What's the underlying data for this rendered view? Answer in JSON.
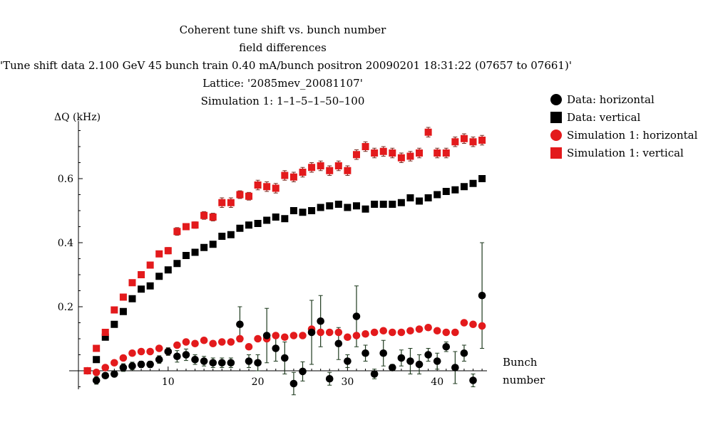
{
  "chart_data": {
    "type": "scatter",
    "title_lines": [
      "Coherent tune shift vs. bunch number",
      "field differences",
      "'Tune shift data 2.100 GeV  45 bunch train  0.40 mA/bunch positron 20090201 18:31:22 (07657 to 07661)'",
      "Lattice: '2085mev_20081107'",
      "Simulation 1: 1–1–5–1–50–100"
    ],
    "ylabel": "ΔQ (kHz)",
    "xlabel_lines": [
      "Bunch",
      "number"
    ],
    "x_ticks": [
      10,
      20,
      30,
      40
    ],
    "y_ticks": [
      0.2,
      0.4,
      0.6
    ],
    "xlim": [
      0,
      46
    ],
    "ylim": [
      -0.055,
      0.76
    ],
    "legend_position": "right",
    "series": [
      {
        "name": "Data: horizontal",
        "marker": "circle",
        "color": "#000000",
        "x": [
          2,
          3,
          4,
          5,
          6,
          7,
          8,
          9,
          10,
          11,
          12,
          13,
          14,
          15,
          16,
          17,
          18,
          19,
          20,
          21,
          22,
          23,
          24,
          25,
          26,
          27,
          28,
          29,
          30,
          31,
          32,
          33,
          34,
          35,
          36,
          37,
          38,
          39,
          40,
          41,
          42,
          43,
          44,
          45
        ],
        "y": [
          -0.03,
          -0.015,
          -0.01,
          0.01,
          0.015,
          0.02,
          0.02,
          0.035,
          0.06,
          0.045,
          0.05,
          0.035,
          0.03,
          0.025,
          0.025,
          0.025,
          0.145,
          0.03,
          0.025,
          0.11,
          0.07,
          0.04,
          -0.04,
          -0.002,
          0.12,
          0.155,
          -0.025,
          0.085,
          0.03,
          0.17,
          0.055,
          -0.01,
          0.055,
          0.01,
          0.04,
          0.03,
          0.02,
          0.05,
          0.03,
          0.075,
          0.01,
          0.055,
          -0.03,
          0.235
        ],
        "err": [
          0.012,
          0.008,
          0.008,
          0.012,
          0.012,
          0.01,
          0.01,
          0.012,
          0.012,
          0.018,
          0.018,
          0.015,
          0.015,
          0.015,
          0.015,
          0.015,
          0.055,
          0.02,
          0.025,
          0.085,
          0.04,
          0.05,
          0.035,
          0.03,
          0.1,
          0.08,
          0.02,
          0.05,
          0.02,
          0.095,
          0.025,
          0.015,
          0.04,
          0.01,
          0.025,
          0.04,
          0.03,
          0.02,
          0.025,
          0.015,
          0.05,
          0.025,
          0.02,
          0.165
        ]
      },
      {
        "name": "Data: vertical",
        "marker": "square",
        "color": "#000000",
        "x": [
          1,
          2,
          3,
          4,
          5,
          6,
          7,
          8,
          9,
          10,
          11,
          12,
          13,
          14,
          15,
          16,
          17,
          18,
          19,
          20,
          21,
          22,
          23,
          24,
          25,
          26,
          27,
          28,
          29,
          30,
          31,
          32,
          33,
          34,
          35,
          36,
          37,
          38,
          39,
          40,
          41,
          42,
          43,
          44,
          45
        ],
        "y": [
          0.0,
          0.035,
          0.105,
          0.145,
          0.185,
          0.225,
          0.255,
          0.265,
          0.295,
          0.315,
          0.335,
          0.36,
          0.37,
          0.385,
          0.395,
          0.42,
          0.425,
          0.445,
          0.455,
          0.46,
          0.47,
          0.48,
          0.475,
          0.5,
          0.495,
          0.5,
          0.51,
          0.515,
          0.52,
          0.51,
          0.515,
          0.505,
          0.52,
          0.52,
          0.52,
          0.525,
          0.54,
          0.53,
          0.54,
          0.55,
          0.56,
          0.565,
          0.575,
          0.585,
          0.6
        ],
        "err": []
      },
      {
        "name": "Simulation 1: horizontal",
        "marker": "circle",
        "color": "#e31a1c",
        "x": [
          1,
          2,
          3,
          4,
          5,
          6,
          7,
          8,
          9,
          10,
          11,
          12,
          13,
          14,
          15,
          16,
          17,
          18,
          19,
          20,
          21,
          22,
          23,
          24,
          25,
          26,
          27,
          28,
          29,
          30,
          31,
          32,
          33,
          34,
          35,
          36,
          37,
          38,
          39,
          40,
          41,
          42,
          43,
          44,
          45
        ],
        "y": [
          0.0,
          -0.005,
          0.01,
          0.025,
          0.04,
          0.055,
          0.06,
          0.06,
          0.07,
          0.06,
          0.08,
          0.09,
          0.085,
          0.095,
          0.085,
          0.09,
          0.09,
          0.1,
          0.075,
          0.1,
          0.1,
          0.11,
          0.105,
          0.11,
          0.11,
          0.13,
          0.12,
          0.12,
          0.12,
          0.105,
          0.11,
          0.115,
          0.12,
          0.125,
          0.12,
          0.12,
          0.125,
          0.13,
          0.135,
          0.125,
          0.12,
          0.12,
          0.15,
          0.145,
          0.14
        ],
        "err": []
      },
      {
        "name": "Simulation 1: vertical",
        "marker": "square",
        "color": "#e31a1c",
        "x": [
          1,
          2,
          3,
          4,
          5,
          6,
          7,
          8,
          9,
          10,
          11,
          12,
          13,
          14,
          15,
          16,
          17,
          18,
          19,
          20,
          21,
          22,
          23,
          24,
          25,
          26,
          27,
          28,
          29,
          30,
          31,
          32,
          33,
          34,
          35,
          36,
          37,
          38,
          39,
          40,
          41,
          42,
          43,
          44,
          45
        ],
        "y": [
          0.0,
          0.07,
          0.12,
          0.19,
          0.23,
          0.275,
          0.3,
          0.33,
          0.365,
          0.375,
          0.435,
          0.45,
          0.455,
          0.485,
          0.48,
          0.525,
          0.525,
          0.55,
          0.545,
          0.58,
          0.575,
          0.57,
          0.61,
          0.605,
          0.62,
          0.635,
          0.64,
          0.625,
          0.64,
          0.625,
          0.675,
          0.7,
          0.68,
          0.685,
          0.68,
          0.665,
          0.67,
          0.68,
          0.745,
          0.68,
          0.68,
          0.715,
          0.725,
          0.715,
          0.72
        ],
        "err": [
          0.0,
          0.008,
          0.008,
          0.008,
          0.008,
          0.008,
          0.008,
          0.008,
          0.008,
          0.01,
          0.012,
          0.01,
          0.01,
          0.012,
          0.012,
          0.015,
          0.015,
          0.012,
          0.012,
          0.015,
          0.015,
          0.015,
          0.015,
          0.015,
          0.015,
          0.015,
          0.015,
          0.015,
          0.015,
          0.015,
          0.015,
          0.015,
          0.015,
          0.015,
          0.015,
          0.015,
          0.015,
          0.015,
          0.015,
          0.015,
          0.015,
          0.015,
          0.015,
          0.015,
          0.015
        ]
      }
    ]
  },
  "colors": {
    "data": "#000000",
    "simulation": "#e31a1c",
    "errorbar_data": "#1e3a1e",
    "errorbar_sim": "#7a2a20"
  }
}
